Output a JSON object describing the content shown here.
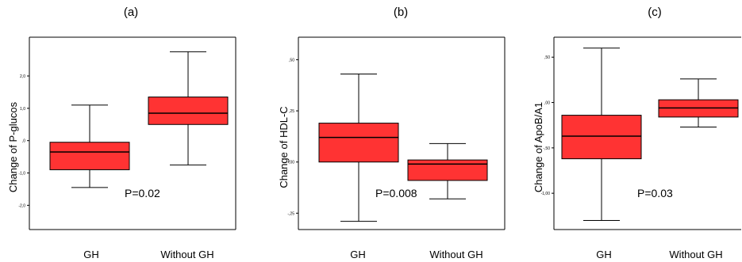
{
  "chart_data": [
    {
      "type": "box",
      "panel_label": "(a)",
      "ylabel": "Change of P-glucos",
      "categories": [
        "GH",
        "Without GH"
      ],
      "yticks": [
        "2,0",
        "1,0",
        ",0",
        "-1,0",
        "-2,0"
      ],
      "ytick_values": [
        2.0,
        1.0,
        0.0,
        -1.0,
        -2.0
      ],
      "ylim": [
        -2.75,
        3.2
      ],
      "boxes": [
        {
          "min": -1.45,
          "q1": -0.9,
          "median": -0.35,
          "q3": -0.05,
          "max": 1.1
        },
        {
          "min": -0.75,
          "q1": 0.5,
          "median": 0.85,
          "q3": 1.35,
          "max": 2.75
        }
      ],
      "box_color": "#ff3333",
      "annotation": "P=0.02"
    },
    {
      "type": "box",
      "panel_label": "(b)",
      "ylabel": "Change of HDL-C",
      "categories": [
        "GH",
        "Without GH"
      ],
      "yticks": [
        ",50",
        ",25",
        ",00",
        "-,25"
      ],
      "ytick_values": [
        0.5,
        0.25,
        0.0,
        -0.25
      ],
      "ylim": [
        -0.33,
        0.61
      ],
      "boxes": [
        {
          "min": -0.29,
          "q1": 0.0,
          "median": 0.12,
          "q3": 0.19,
          "max": 0.43
        },
        {
          "min": -0.18,
          "q1": -0.09,
          "median": -0.01,
          "q3": 0.01,
          "max": 0.09
        }
      ],
      "box_color": "#ff3333",
      "annotation": "P=0.008"
    },
    {
      "type": "box",
      "panel_label": "(c)",
      "ylabel": "Change of ApoB/A1",
      "categories": [
        "GH",
        "Without GH"
      ],
      "yticks": [
        ",50",
        ",00",
        "-,50",
        "-1,00"
      ],
      "ytick_values": [
        0.5,
        0.0,
        -0.5,
        -1.0
      ],
      "ylim": [
        -1.4,
        0.72
      ],
      "boxes": [
        {
          "min": -1.3,
          "q1": -0.62,
          "median": -0.37,
          "q3": -0.14,
          "max": 0.6
        },
        {
          "min": -0.27,
          "q1": -0.16,
          "median": -0.06,
          "q3": 0.03,
          "max": 0.26
        }
      ],
      "box_color": "#ff3333",
      "annotation": "P=0.03"
    }
  ]
}
